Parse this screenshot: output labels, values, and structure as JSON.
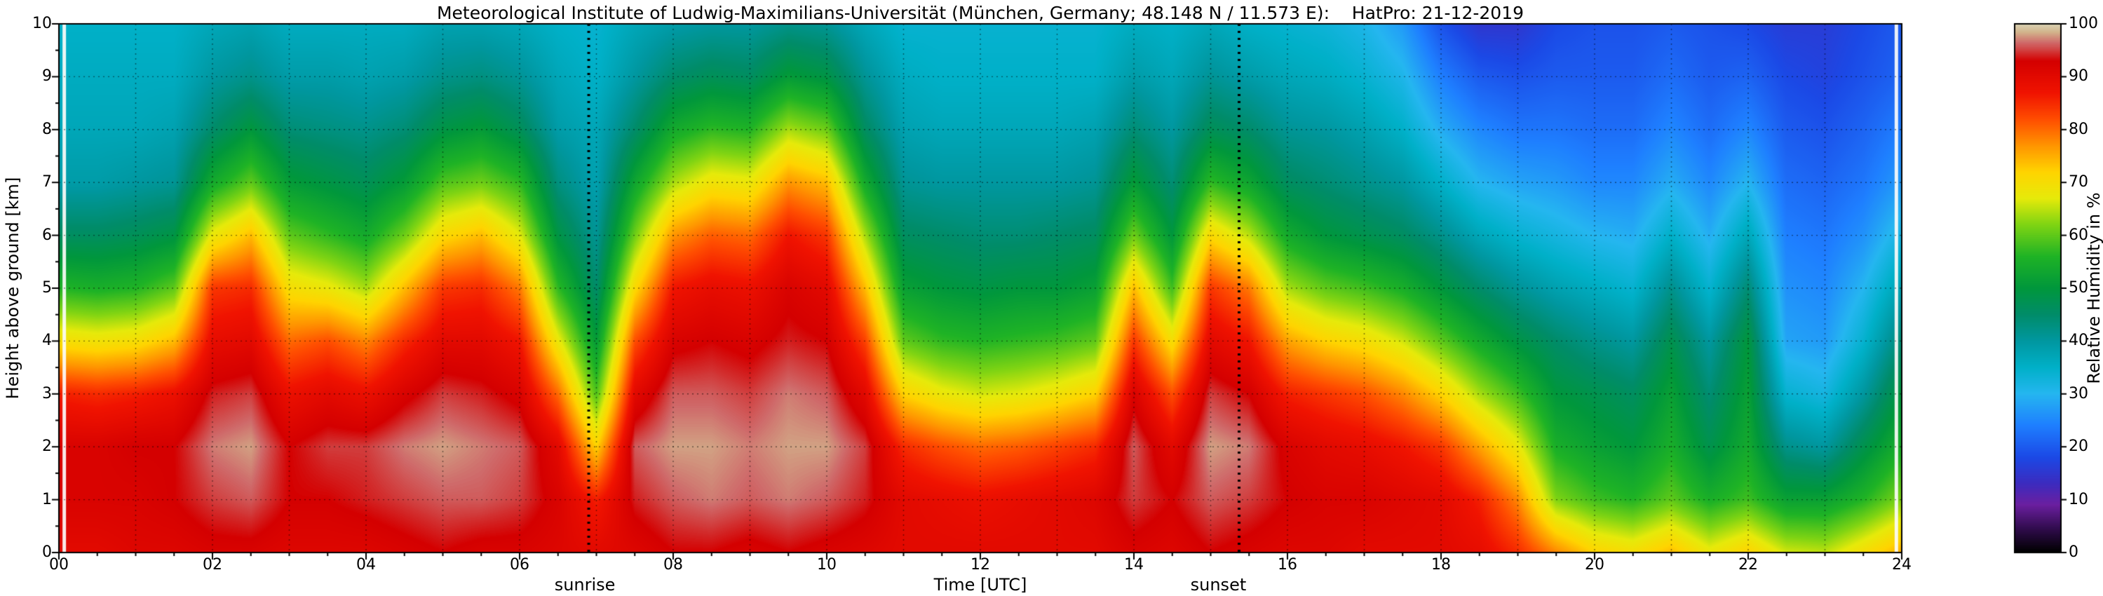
{
  "title": "Meteorological Institute of Ludwig-Maximilians-Universität (München, Germany; 48.148 N / 11.573 E):    HatPro: 21-12-2019",
  "axes": {
    "x_label": "Time [UTC]",
    "y_label": "Height above ground [km]",
    "x_ticks": [
      "00",
      "02",
      "04",
      "06",
      "08",
      "10",
      "12",
      "14",
      "16",
      "18",
      "20",
      "22",
      "24"
    ],
    "x_tick_hours": [
      0,
      2,
      4,
      6,
      8,
      10,
      12,
      14,
      16,
      18,
      20,
      22,
      24
    ],
    "x_minor_step_hours": 0.5,
    "y_ticks": [
      "0",
      "1",
      "2",
      "3",
      "4",
      "5",
      "6",
      "7",
      "8",
      "9",
      "10"
    ],
    "y_tick_km": [
      0,
      1,
      2,
      3,
      4,
      5,
      6,
      7,
      8,
      9,
      10
    ],
    "x_range_hours": [
      0,
      24
    ],
    "y_range_km": [
      0,
      10
    ],
    "grid": "dotted"
  },
  "annotations": {
    "sunrise_label": "sunrise",
    "sunrise_label_time": 6.85,
    "sunset_label": "sunset",
    "sunset_label_time": 15.1
  },
  "colorbar": {
    "label": "Relative Humidity in %",
    "ticks": [
      "0",
      "10",
      "20",
      "30",
      "40",
      "50",
      "60",
      "70",
      "80",
      "90",
      "100"
    ],
    "tick_values": [
      0,
      10,
      20,
      30,
      40,
      50,
      60,
      70,
      80,
      90,
      100
    ],
    "range": [
      0,
      100
    ]
  },
  "chart_data": {
    "type": "heatmap",
    "title": "HatPro relative humidity time-height section, 21-12-2019, München (48.148 N / 11.573 E)",
    "xlabel": "Time [UTC]",
    "ylabel": "Height above ground [km]",
    "zlabel": "Relative Humidity in %",
    "x_hours_start": 0,
    "x_hours_step": 0.5,
    "y_km_bottom_to_top": [
      0,
      1,
      2,
      3,
      4,
      5,
      6,
      7,
      8,
      9,
      10
    ],
    "orientation": "grid is one array per time step (every 0.5 h from 00 to 24 UTC); each inner array lists RH % from 0 km (first) to 10 km (last)",
    "grid": [
      [
        90,
        92,
        92,
        86,
        70,
        56,
        46,
        39,
        37,
        36,
        35
      ],
      [
        90,
        92,
        92,
        85,
        69,
        55,
        46,
        39,
        37,
        36,
        35
      ],
      [
        91,
        92,
        93,
        86,
        70,
        56,
        47,
        40,
        37,
        36,
        35
      ],
      [
        91,
        93,
        93,
        88,
        74,
        60,
        49,
        41,
        38,
        36,
        35
      ],
      [
        92,
        95,
        97,
        94,
        89,
        84,
        68,
        54,
        45,
        40,
        37
      ],
      [
        92,
        96,
        98,
        95,
        90,
        85,
        74,
        60,
        50,
        42,
        38
      ],
      [
        91,
        93,
        93,
        88,
        80,
        70,
        60,
        51,
        44,
        39,
        36
      ],
      [
        91,
        93,
        95,
        90,
        82,
        68,
        57,
        49,
        43,
        39,
        36
      ],
      [
        91,
        94,
        95,
        88,
        78,
        64,
        54,
        47,
        42,
        38,
        36
      ],
      [
        92,
        95,
        97,
        92,
        85,
        74,
        61,
        51,
        44,
        39,
        36
      ],
      [
        93,
        96,
        98,
        95,
        90,
        84,
        71,
        59,
        49,
        42,
        38
      ],
      [
        92,
        96,
        97,
        94,
        90,
        85,
        74,
        61,
        51,
        43,
        38
      ],
      [
        92,
        95,
        96,
        92,
        87,
        79,
        67,
        57,
        47,
        41,
        37
      ],
      [
        91,
        92,
        90,
        80,
        68,
        57,
        49,
        43,
        39,
        37,
        35
      ],
      [
        90,
        86,
        72,
        59,
        51,
        45,
        41,
        38,
        37,
        35,
        34
      ],
      [
        91,
        94,
        96,
        90,
        82,
        71,
        61,
        53,
        45,
        40,
        37
      ],
      [
        93,
        96,
        98,
        96,
        92,
        87,
        77,
        64,
        54,
        45,
        39
      ],
      [
        93,
        97,
        98,
        96,
        93,
        89,
        81,
        69,
        57,
        47,
        40
      ],
      [
        92,
        96,
        97,
        95,
        92,
        88,
        80,
        68,
        56,
        46,
        40
      ],
      [
        93,
        97,
        98,
        97,
        94,
        92,
        87,
        77,
        64,
        51,
        42
      ],
      [
        92,
        96,
        98,
        96,
        93,
        90,
        84,
        74,
        61,
        49,
        41
      ],
      [
        91,
        94,
        95,
        90,
        83,
        74,
        64,
        54,
        46,
        41,
        37
      ],
      [
        90,
        90,
        85,
        72,
        60,
        52,
        46,
        41,
        38,
        36,
        34
      ],
      [
        90,
        89,
        82,
        68,
        57,
        50,
        45,
        40,
        37,
        35,
        34
      ],
      [
        90,
        88,
        80,
        66,
        56,
        49,
        44,
        40,
        37,
        35,
        34
      ],
      [
        90,
        89,
        81,
        67,
        57,
        50,
        44,
        40,
        37,
        35,
        34
      ],
      [
        90,
        90,
        83,
        69,
        58,
        50,
        45,
        40,
        37,
        35,
        34
      ],
      [
        90,
        91,
        85,
        72,
        60,
        52,
        46,
        41,
        38,
        35,
        34
      ],
      [
        92,
        95,
        96,
        92,
        84,
        74,
        61,
        51,
        44,
        39,
        36
      ],
      [
        91,
        93,
        90,
        82,
        70,
        58,
        50,
        44,
        40,
        37,
        35
      ],
      [
        93,
        96,
        98,
        95,
        90,
        84,
        71,
        57,
        47,
        41,
        37
      ],
      [
        92,
        95,
        97,
        93,
        87,
        79,
        65,
        53,
        45,
        39,
        35
      ],
      [
        91,
        93,
        92,
        86,
        76,
        64,
        54,
        46,
        41,
        37,
        34
      ],
      [
        91,
        92,
        90,
        84,
        72,
        60,
        50,
        44,
        40,
        36,
        33
      ],
      [
        90,
        92,
        89,
        82,
        70,
        58,
        48,
        42,
        38,
        34,
        31
      ],
      [
        90,
        91,
        87,
        78,
        66,
        55,
        46,
        40,
        35,
        31,
        27
      ],
      [
        90,
        90,
        84,
        72,
        60,
        50,
        42,
        35,
        29,
        24,
        19
      ],
      [
        89,
        86,
        76,
        64,
        54,
        45,
        37,
        30,
        25,
        20,
        15
      ],
      [
        85,
        78,
        68,
        58,
        49,
        41,
        34,
        28,
        23,
        19,
        15
      ],
      [
        78,
        62,
        55,
        50,
        45,
        38,
        32,
        27,
        23,
        20,
        18
      ],
      [
        72,
        58,
        52,
        48,
        42,
        36,
        30,
        25,
        22,
        20,
        19
      ],
      [
        70,
        56,
        50,
        46,
        40,
        34,
        29,
        25,
        22,
        20,
        19
      ],
      [
        74,
        60,
        55,
        52,
        48,
        42,
        35,
        29,
        25,
        22,
        20
      ],
      [
        68,
        55,
        48,
        44,
        40,
        34,
        29,
        25,
        22,
        20,
        19
      ],
      [
        72,
        58,
        54,
        52,
        50,
        44,
        37,
        30,
        25,
        21,
        18
      ],
      [
        66,
        52,
        42,
        34,
        28,
        26,
        24,
        22,
        20,
        18,
        16
      ],
      [
        65,
        52,
        40,
        32,
        27,
        25,
        23,
        21,
        19,
        17,
        16
      ],
      [
        70,
        56,
        48,
        40,
        34,
        30,
        26,
        23,
        21,
        19,
        18
      ],
      [
        75,
        62,
        55,
        50,
        44,
        38,
        32,
        27,
        24,
        21,
        20
      ]
    ],
    "sunrise_utc": 6.9,
    "sunset_utc": 15.37,
    "artifact_stripes_utc": [
      0.07,
      23.93
    ],
    "colormap_stops": [
      [
        0,
        "#000000"
      ],
      [
        4,
        "#2b0a45"
      ],
      [
        9,
        "#6b1fa0"
      ],
      [
        13,
        "#3c2bbf"
      ],
      [
        18,
        "#1b49e6"
      ],
      [
        24,
        "#1e7fff"
      ],
      [
        30,
        "#25b6f0"
      ],
      [
        35,
        "#00b0c8"
      ],
      [
        40,
        "#0097a0"
      ],
      [
        45,
        "#008c69"
      ],
      [
        50,
        "#00973c"
      ],
      [
        56,
        "#1fb325"
      ],
      [
        62,
        "#7fd413"
      ],
      [
        67,
        "#e6ea0a"
      ],
      [
        72,
        "#ffd400"
      ],
      [
        77,
        "#ff9500"
      ],
      [
        82,
        "#ff4d00"
      ],
      [
        87,
        "#f01300"
      ],
      [
        93,
        "#d40000"
      ],
      [
        96.5,
        "#cf6a6a"
      ],
      [
        98.5,
        "#d2b48c"
      ],
      [
        100,
        "#d9d2b4"
      ]
    ],
    "legend_position": "right-colorbar",
    "zlim": [
      0,
      100
    ]
  }
}
